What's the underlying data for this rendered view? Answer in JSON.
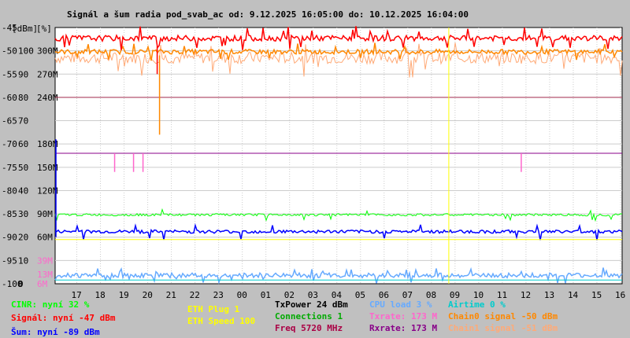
{
  "colors": {
    "cinr": "#00ff00",
    "signal": "#ff0000",
    "noise": "#0000ff",
    "eth": "#ffff00",
    "connections": "#00aa00",
    "txpower": "#000000",
    "freq": "#aa0044",
    "cpu": "#66aaff",
    "txrate": "#ff66cc",
    "rxrate": "#880088",
    "airtime": "#00cccc",
    "chain0": "#ff8800",
    "chain1": "#ffaa77",
    "grid": "#cccccc",
    "refline": "#aa3355"
  },
  "chart_data": {
    "type": "line",
    "title": "Signál a šum radia pod_svab_ac od: 9.12.2025 16:05:00 do: 10.12.2025 16:04:00",
    "y_axis_dbm": {
      "ticks": [
        "-45",
        "-50",
        "-55",
        "-60",
        "-65",
        "-70",
        "-75",
        "-80",
        "-85",
        "-90",
        "-95",
        "-100"
      ],
      "unit": "[dBm]"
    },
    "y_axis_percent": {
      "ticks": [
        "100",
        "90",
        "80",
        "70",
        "60",
        "50",
        "40",
        "30",
        "20",
        "10",
        "0"
      ],
      "unit": "[%]"
    },
    "y_axis_rate": {
      "ticks": [
        "300M",
        "270M",
        "240M",
        "180M",
        "150M",
        "120M",
        "90M",
        "60M",
        "39M",
        "13M",
        "6M"
      ]
    },
    "x_axis": {
      "ticks": [
        "17",
        "18",
        "19",
        "20",
        "21",
        "22",
        "23",
        "00",
        "01",
        "02",
        "03",
        "04",
        "05",
        "06",
        "07",
        "08",
        "09",
        "10",
        "11",
        "12",
        "13",
        "14",
        "15",
        "16"
      ],
      "unit": "[h]",
      "range_hours": [
        16.083,
        40.067
      ]
    },
    "ylim_dbm": [
      -100,
      -45
    ],
    "grid": true,
    "series": [
      {
        "name": "CINR",
        "unit": "%",
        "typical": 32,
        "color": "#00ff00"
      },
      {
        "name": "Signál",
        "unit": "dBm",
        "typical": -47,
        "color": "#ff0000"
      },
      {
        "name": "Šum",
        "unit": "dBm",
        "typical": -89,
        "color": "#0000ff"
      },
      {
        "name": "CPU load",
        "unit": "%",
        "typical": 3,
        "color": "#66aaff"
      },
      {
        "name": "Txrate",
        "unit": "M",
        "typical": 173,
        "color": "#ff66cc"
      },
      {
        "name": "Rxrate",
        "unit": "M",
        "typical": 173,
        "color": "#880088"
      },
      {
        "name": "Chain0 signal",
        "unit": "dBm",
        "typical": -50,
        "color": "#ff8800"
      },
      {
        "name": "Chain1 signal",
        "unit": "dBm",
        "typical": -51,
        "color": "#ffaa77"
      }
    ],
    "annotations": [
      {
        "hour": 20.5,
        "series": "Chain0 signal",
        "value": -68
      },
      {
        "hour": 35.8,
        "series": "ETH marker",
        "value": null
      }
    ]
  },
  "legend": {
    "cinr": "CINR: nyní 32 %",
    "signal": "Signál: nyní -47 dBm",
    "noise": "Šum: nyní -89 dBm",
    "eth_plug": "ETH Plug 1",
    "eth_speed": "ETH Speed 100",
    "txpower": "TxPower 24 dBm",
    "connections": "Connections 1",
    "freq": "Freq 5720 MHz",
    "cpu": "CPU load 3 %",
    "txrate": "Txrate: 173 M",
    "rxrate": "Rxrate: 173 M",
    "airtime": "Airtime 0 %",
    "chain0": "Chain0 signal -50 dBm",
    "chain1": "Chain1 signal -51 dBm"
  }
}
